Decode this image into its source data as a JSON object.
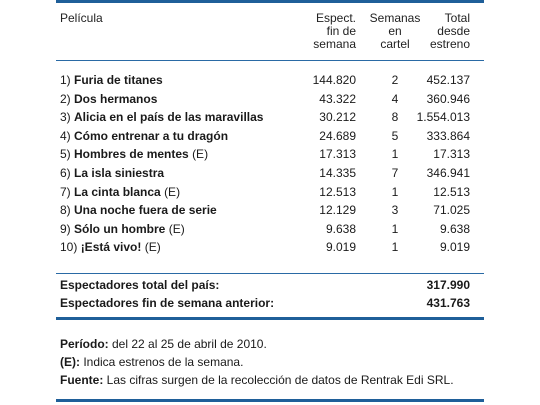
{
  "header": {
    "col_title": "Película",
    "col_weekend": [
      "Espect.",
      "fin de",
      "semana"
    ],
    "col_weeks": [
      "Semanas",
      "en",
      "cartel"
    ],
    "col_total": [
      "Total",
      "desde",
      "estreno"
    ]
  },
  "rows": [
    {
      "rank": "1)",
      "title": "Furia de titanes",
      "suffix": "",
      "weekend": "144.820",
      "weeks": "2",
      "total": "452.137"
    },
    {
      "rank": "2)",
      "title": "Dos hermanos",
      "suffix": "",
      "weekend": "43.322",
      "weeks": "4",
      "total": "360.946"
    },
    {
      "rank": "3)",
      "title": "Alicia en el país de las maravillas",
      "suffix": "",
      "weekend": "30.212",
      "weeks": "8",
      "total": "1.554.013"
    },
    {
      "rank": "4)",
      "title": "Cómo entrenar a tu dragón",
      "suffix": "",
      "weekend": "24.689",
      "weeks": "5",
      "total": "333.864"
    },
    {
      "rank": "5)",
      "title": "Hombres de mentes",
      "suffix": "(E)",
      "weekend": "17.313",
      "weeks": "1",
      "total": "17.313"
    },
    {
      "rank": "6)",
      "title": "La isla siniestra",
      "suffix": "",
      "weekend": "14.335",
      "weeks": "7",
      "total": "346.941"
    },
    {
      "rank": "7)",
      "title": "La cinta blanca",
      "suffix": "(E)",
      "weekend": "12.513",
      "weeks": "1",
      "total": "12.513"
    },
    {
      "rank": "8)",
      "title": "Una noche fuera de serie",
      "suffix": "",
      "weekend": "12.129",
      "weeks": "3",
      "total": "71.025"
    },
    {
      "rank": "9)",
      "title": "Sólo un hombre",
      "suffix": "(E)",
      "weekend": "9.638",
      "weeks": "1",
      "total": "9.638"
    },
    {
      "rank": "10)",
      "title": "¡Está vivo!",
      "suffix": "(E)",
      "weekend": "9.019",
      "weeks": "1",
      "total": "9.019"
    }
  ],
  "summary": {
    "total_label": "Espectadores total del país:",
    "total_value": "317.990",
    "prev_label": "Espectadores fin de semana anterior:",
    "prev_value": "431.763"
  },
  "notes": {
    "period_label": "Período:",
    "period_text": " del 22 al 25 de abril de 2010.",
    "legend_label": "(E):",
    "legend_text": " Indica estrenos de la semana.",
    "source_label": "Fuente:",
    "source_text": " Las cifras surgen de la recolección de datos de Rentrak Edi SRL."
  },
  "colors": {
    "accent": "#1f5f99"
  }
}
